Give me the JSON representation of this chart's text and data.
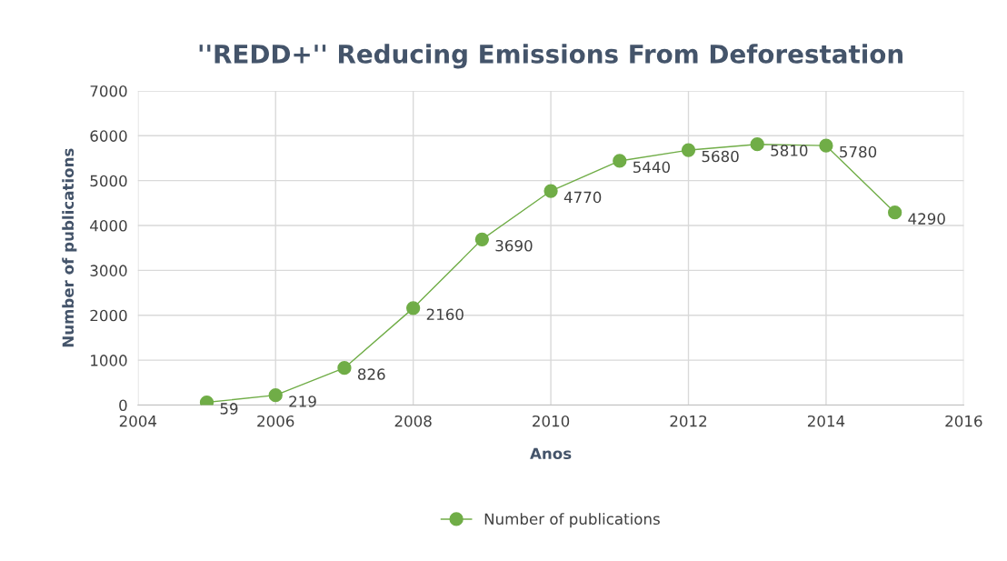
{
  "chart_data": {
    "type": "line",
    "title": "''REDD+'' Reducing Emissions From Deforestation",
    "xlabel": "Anos",
    "ylabel": "Number of publications",
    "x": [
      2005,
      2006,
      2007,
      2008,
      2009,
      2010,
      2011,
      2012,
      2013,
      2014,
      2015
    ],
    "series": [
      {
        "name": "Number of publications",
        "color": "#70ad47",
        "values": [
          59,
          219,
          826,
          2160,
          3690,
          4770,
          5440,
          5680,
          5810,
          5780,
          4290
        ]
      }
    ],
    "xlim": [
      2004,
      2016
    ],
    "xticks": [
      2004,
      2006,
      2008,
      2010,
      2012,
      2014,
      2016
    ],
    "ylim": [
      0,
      7000
    ],
    "yticks": [
      0,
      1000,
      2000,
      3000,
      4000,
      5000,
      6000,
      7000
    ],
    "grid": true,
    "legend": "bottom",
    "marker": "circle",
    "line_style": "solid",
    "data_labels": true
  }
}
